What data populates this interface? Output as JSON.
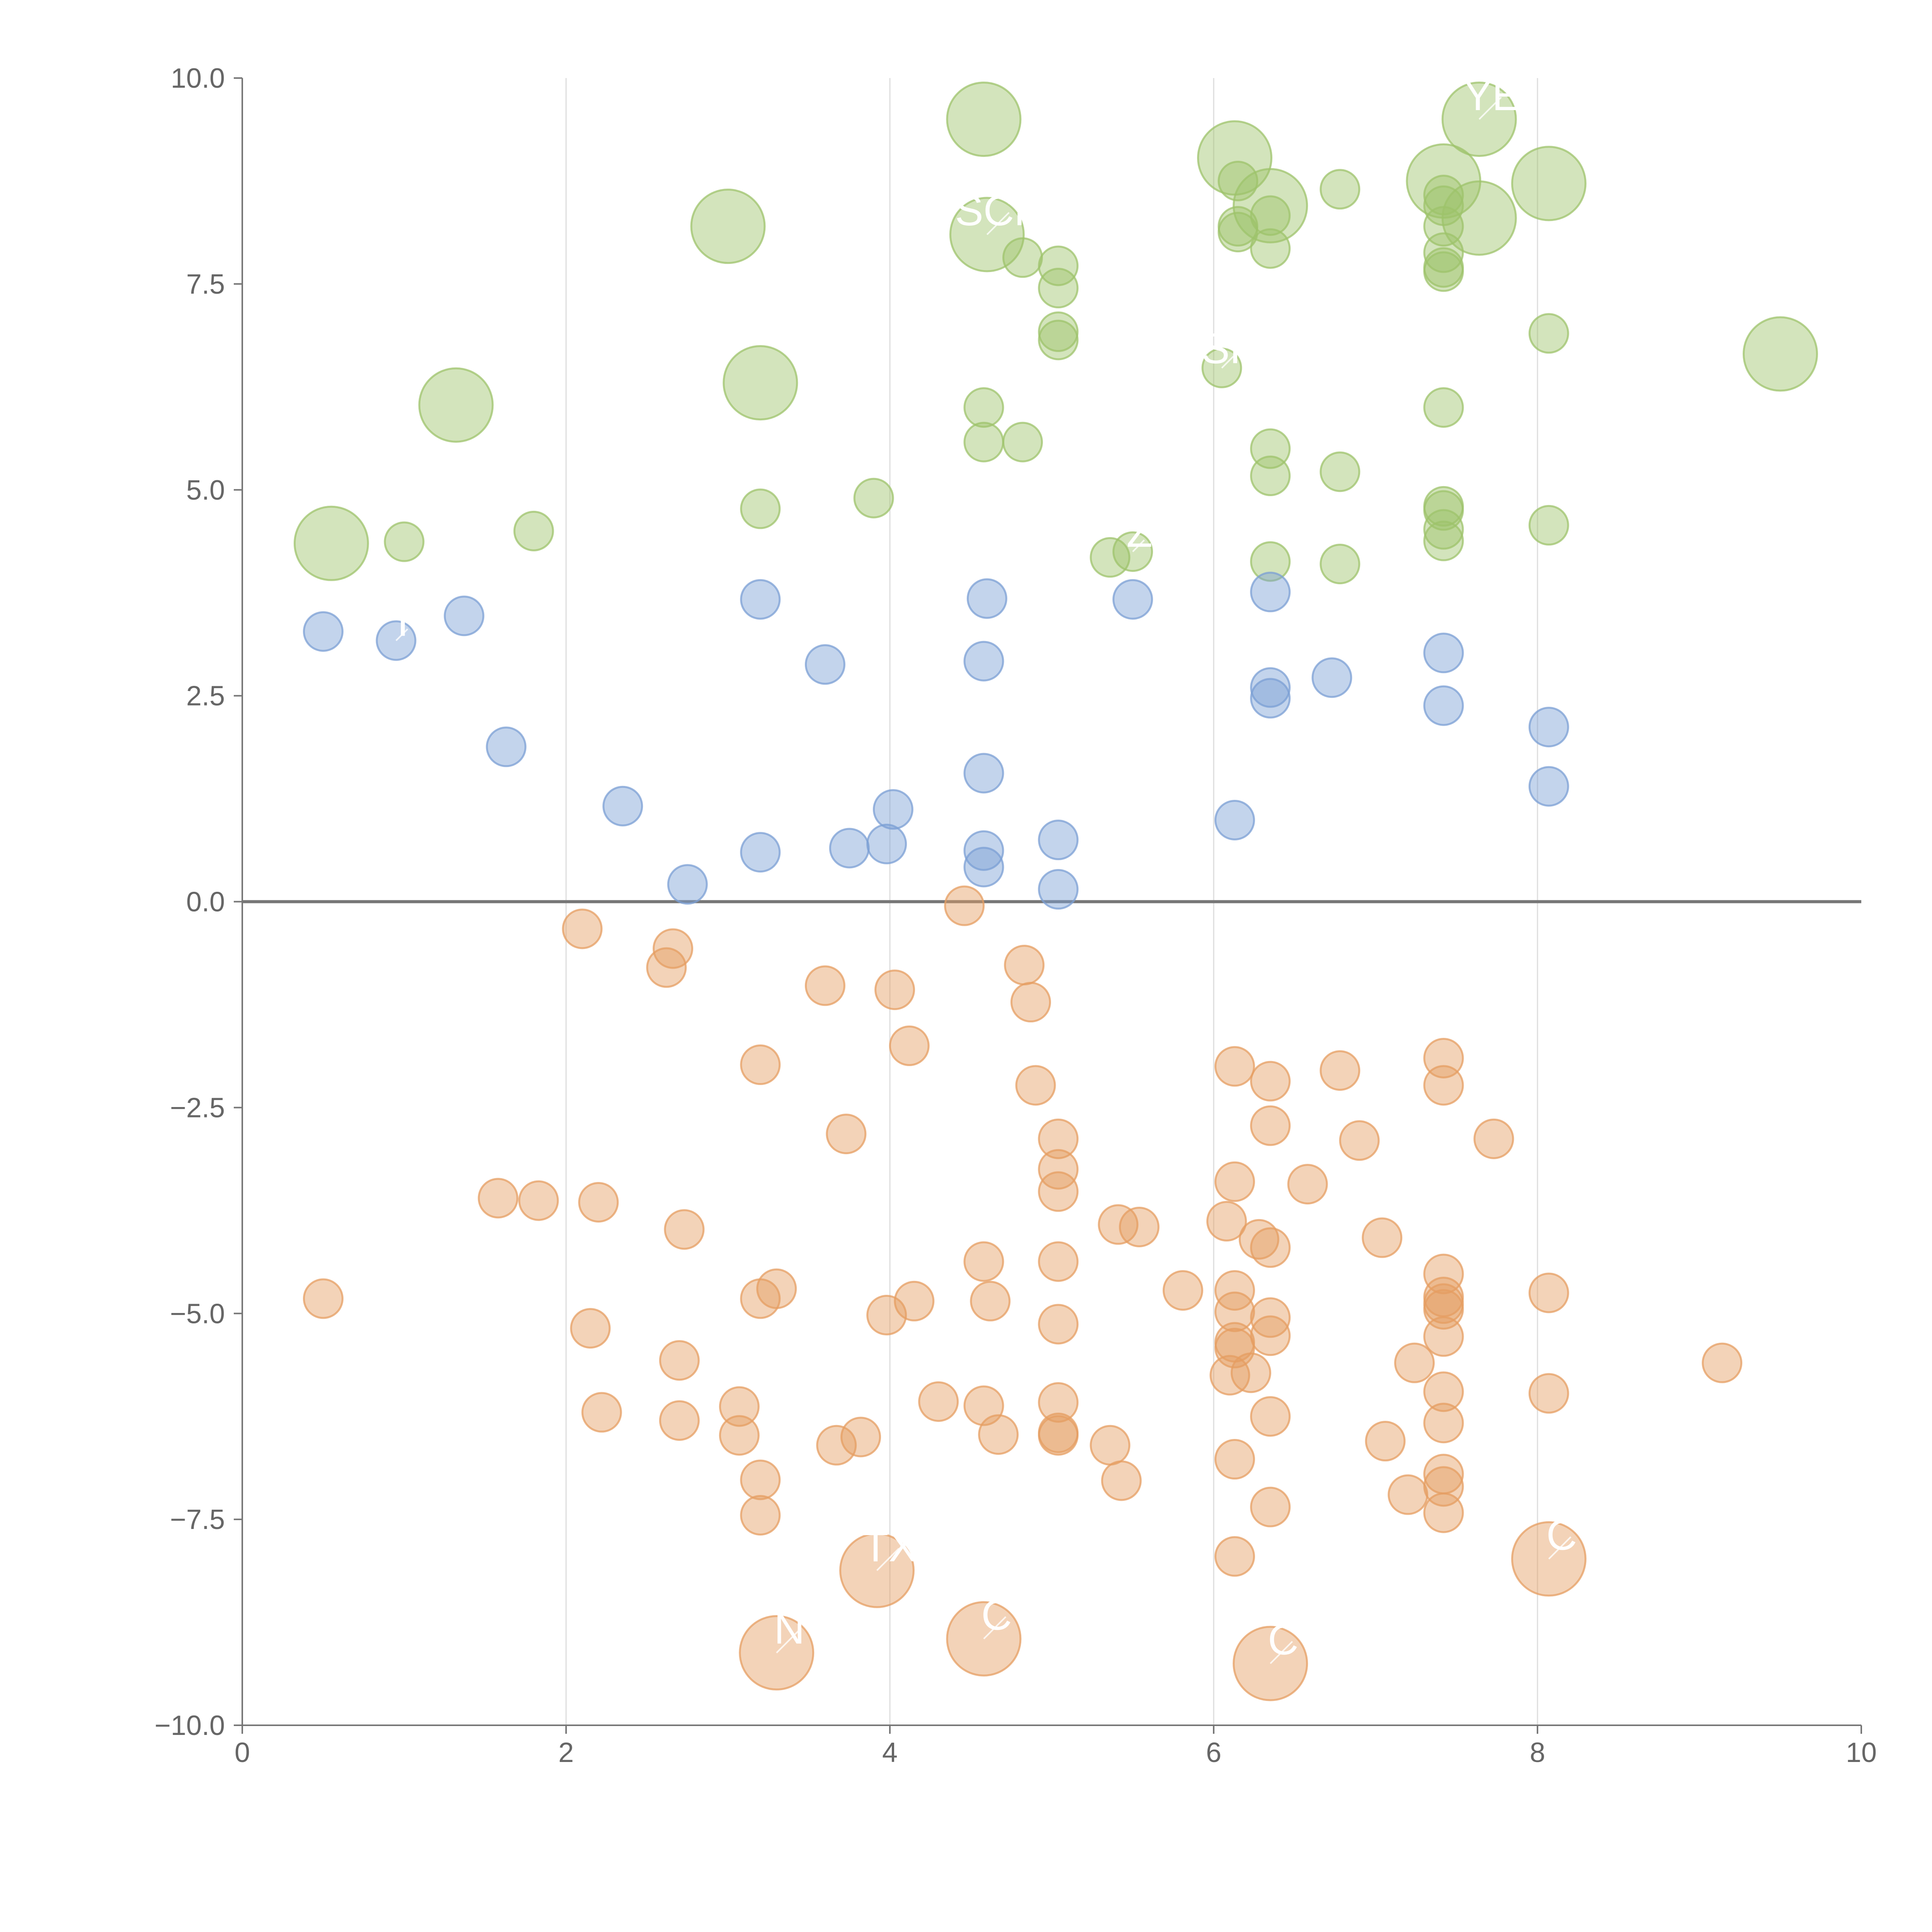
{
  "chart_data": {
    "type": "scatter",
    "title": "",
    "xlabel": "",
    "ylabel": "",
    "xlim": [
      0,
      10
    ],
    "ylim": [
      -10,
      10
    ],
    "grid": "vertical",
    "x_ticks": [
      "0",
      "2",
      "4",
      "6",
      "8",
      "10"
    ],
    "y_ticks": [
      "−10.0",
      "−7.5",
      "−5.0",
      "−2.5",
      "0.0",
      "2.5",
      "5.0",
      "7.5",
      "10.0"
    ],
    "colors": {
      "green": "#9dc36b",
      "blue": "#7b9fd4",
      "orange": "#e59d62",
      "axis": "#777777"
    },
    "series": [
      {
        "name": "green",
        "color": "#9dc36b",
        "points": [
          {
            "x": 0.55,
            "y": 4.35,
            "size": 2,
            "label": ""
          },
          {
            "x": 1.0,
            "y": 4.37,
            "size": 1
          },
          {
            "x": 1.8,
            "y": 4.5,
            "size": 1
          },
          {
            "x": 1.32,
            "y": 6.03,
            "size": 2
          },
          {
            "x": 3.0,
            "y": 8.2,
            "size": 2
          },
          {
            "x": 3.2,
            "y": 6.3,
            "size": 2
          },
          {
            "x": 3.2,
            "y": 4.77,
            "size": 1
          },
          {
            "x": 3.9,
            "y": 4.9,
            "size": 1
          },
          {
            "x": 4.58,
            "y": 9.5,
            "size": 2
          },
          {
            "x": 4.6,
            "y": 8.1,
            "size": 2,
            "label": "SCH"
          },
          {
            "x": 4.58,
            "y": 6.0,
            "size": 1
          },
          {
            "x": 4.58,
            "y": 5.58,
            "size": 1
          },
          {
            "x": 4.82,
            "y": 5.58,
            "size": 1
          },
          {
            "x": 4.82,
            "y": 7.82,
            "size": 1
          },
          {
            "x": 5.04,
            "y": 7.72,
            "size": 1
          },
          {
            "x": 5.04,
            "y": 7.45,
            "size": 1
          },
          {
            "x": 5.04,
            "y": 6.92,
            "size": 1
          },
          {
            "x": 5.04,
            "y": 6.82,
            "size": 1
          },
          {
            "x": 5.36,
            "y": 4.18,
            "size": 1
          },
          {
            "x": 5.5,
            "y": 4.25,
            "size": 1,
            "label": "Z"
          },
          {
            "x": 6.05,
            "y": 6.48,
            "size": 1,
            "label": "SF"
          },
          {
            "x": 6.13,
            "y": 9.03,
            "size": 2
          },
          {
            "x": 6.15,
            "y": 8.75,
            "size": 1
          },
          {
            "x": 6.15,
            "y": 8.2,
            "size": 1
          },
          {
            "x": 6.15,
            "y": 8.13,
            "size": 1
          },
          {
            "x": 6.35,
            "y": 8.45,
            "size": 2
          },
          {
            "x": 6.35,
            "y": 8.33,
            "size": 1
          },
          {
            "x": 6.35,
            "y": 7.93,
            "size": 1
          },
          {
            "x": 6.35,
            "y": 5.5,
            "size": 1
          },
          {
            "x": 6.35,
            "y": 5.17,
            "size": 1
          },
          {
            "x": 6.35,
            "y": 4.13,
            "size": 1
          },
          {
            "x": 6.78,
            "y": 8.65,
            "size": 1
          },
          {
            "x": 6.78,
            "y": 5.22,
            "size": 1
          },
          {
            "x": 6.78,
            "y": 4.1,
            "size": 1
          },
          {
            "x": 7.42,
            "y": 8.75,
            "size": 2
          },
          {
            "x": 7.42,
            "y": 8.58,
            "size": 1
          },
          {
            "x": 7.42,
            "y": 8.45,
            "size": 1
          },
          {
            "x": 7.42,
            "y": 8.2,
            "size": 1
          },
          {
            "x": 7.42,
            "y": 7.88,
            "size": 1
          },
          {
            "x": 7.42,
            "y": 7.7,
            "size": 1
          },
          {
            "x": 7.42,
            "y": 7.65,
            "size": 1
          },
          {
            "x": 7.42,
            "y": 6.0,
            "size": 1
          },
          {
            "x": 7.42,
            "y": 4.8,
            "size": 1
          },
          {
            "x": 7.42,
            "y": 4.75,
            "size": 1
          },
          {
            "x": 7.42,
            "y": 4.52,
            "size": 1
          },
          {
            "x": 7.42,
            "y": 4.38,
            "size": 1
          },
          {
            "x": 7.64,
            "y": 9.5,
            "size": 2,
            "label": "YE"
          },
          {
            "x": 7.64,
            "y": 8.3,
            "size": 2
          },
          {
            "x": 8.07,
            "y": 8.72,
            "size": 2
          },
          {
            "x": 8.07,
            "y": 6.9,
            "size": 1
          },
          {
            "x": 8.07,
            "y": 4.57,
            "size": 1
          },
          {
            "x": 9.5,
            "y": 6.65,
            "size": 2
          }
        ]
      },
      {
        "name": "blue",
        "color": "#7b9fd4",
        "points": [
          {
            "x": 0.5,
            "y": 3.28,
            "size": 1
          },
          {
            "x": 0.95,
            "y": 3.17,
            "size": 1,
            "label": "I"
          },
          {
            "x": 1.37,
            "y": 3.47,
            "size": 1
          },
          {
            "x": 1.63,
            "y": 1.88,
            "size": 1
          },
          {
            "x": 2.35,
            "y": 1.16,
            "size": 1
          },
          {
            "x": 2.75,
            "y": 0.21,
            "size": 1
          },
          {
            "x": 3.2,
            "y": 3.67,
            "size": 1
          },
          {
            "x": 3.2,
            "y": 0.6,
            "size": 1
          },
          {
            "x": 3.6,
            "y": 2.88,
            "size": 1
          },
          {
            "x": 3.75,
            "y": 0.65,
            "size": 1
          },
          {
            "x": 3.98,
            "y": 0.7,
            "size": 1
          },
          {
            "x": 4.02,
            "y": 1.12,
            "size": 1
          },
          {
            "x": 4.6,
            "y": 3.68,
            "size": 1
          },
          {
            "x": 4.58,
            "y": 2.92,
            "size": 1
          },
          {
            "x": 4.58,
            "y": 1.56,
            "size": 1
          },
          {
            "x": 4.58,
            "y": 0.62,
            "size": 1
          },
          {
            "x": 4.58,
            "y": 0.42,
            "size": 1
          },
          {
            "x": 5.04,
            "y": 0.75,
            "size": 1
          },
          {
            "x": 5.04,
            "y": 0.15,
            "size": 1
          },
          {
            "x": 5.5,
            "y": 3.67,
            "size": 1
          },
          {
            "x": 6.13,
            "y": 0.99,
            "size": 1
          },
          {
            "x": 6.35,
            "y": 3.76,
            "size": 1
          },
          {
            "x": 6.35,
            "y": 2.6,
            "size": 1
          },
          {
            "x": 6.35,
            "y": 2.47,
            "size": 1
          },
          {
            "x": 6.73,
            "y": 2.72,
            "size": 1
          },
          {
            "x": 7.42,
            "y": 3.02,
            "size": 1
          },
          {
            "x": 7.42,
            "y": 2.38,
            "size": 1
          },
          {
            "x": 8.07,
            "y": 2.12,
            "size": 1
          },
          {
            "x": 8.07,
            "y": 1.4,
            "size": 1
          }
        ]
      },
      {
        "name": "orange",
        "color": "#e59d62",
        "points": [
          {
            "x": 0.5,
            "y": -4.82,
            "size": 1
          },
          {
            "x": 1.58,
            "y": -3.6,
            "size": 1
          },
          {
            "x": 1.83,
            "y": -3.63,
            "size": 1
          },
          {
            "x": 2.1,
            "y": -0.33,
            "size": 1
          },
          {
            "x": 2.15,
            "y": -5.18,
            "size": 1
          },
          {
            "x": 2.2,
            "y": -3.65,
            "size": 1
          },
          {
            "x": 2.22,
            "y": -6.2,
            "size": 1
          },
          {
            "x": 2.62,
            "y": -0.8,
            "size": 1
          },
          {
            "x": 2.66,
            "y": -0.57,
            "size": 1
          },
          {
            "x": 2.7,
            "y": -5.57,
            "size": 1
          },
          {
            "x": 2.7,
            "y": -6.3,
            "size": 1
          },
          {
            "x": 2.73,
            "y": -3.98,
            "size": 1
          },
          {
            "x": 3.07,
            "y": -6.13,
            "size": 1
          },
          {
            "x": 3.07,
            "y": -6.48,
            "size": 1
          },
          {
            "x": 3.2,
            "y": -1.98,
            "size": 1
          },
          {
            "x": 3.2,
            "y": -4.82,
            "size": 1
          },
          {
            "x": 3.2,
            "y": -7.02,
            "size": 1
          },
          {
            "x": 3.2,
            "y": -7.45,
            "size": 1
          },
          {
            "x": 3.3,
            "y": -4.7,
            "size": 1
          },
          {
            "x": 3.3,
            "y": -9.12,
            "size": 2,
            "label": "N"
          },
          {
            "x": 3.6,
            "y": -1.02,
            "size": 1
          },
          {
            "x": 3.67,
            "y": -6.6,
            "size": 1
          },
          {
            "x": 3.73,
            "y": -2.82,
            "size": 1
          },
          {
            "x": 3.82,
            "y": -6.5,
            "size": 1
          },
          {
            "x": 3.92,
            "y": -8.12,
            "size": 2,
            "label": "TX"
          },
          {
            "x": 3.98,
            "y": -5.02,
            "size": 1
          },
          {
            "x": 4.03,
            "y": -1.07,
            "size": 1
          },
          {
            "x": 4.12,
            "y": -1.75,
            "size": 1
          },
          {
            "x": 4.15,
            "y": -4.85,
            "size": 1
          },
          {
            "x": 4.3,
            "y": -6.07,
            "size": 1
          },
          {
            "x": 4.46,
            "y": -0.05,
            "size": 1
          },
          {
            "x": 4.58,
            "y": -4.37,
            "size": 1
          },
          {
            "x": 4.58,
            "y": -6.12,
            "size": 1
          },
          {
            "x": 4.62,
            "y": -4.85,
            "size": 1
          },
          {
            "x": 4.58,
            "y": -8.95,
            "size": 2,
            "label": "C"
          },
          {
            "x": 4.67,
            "y": -6.47,
            "size": 1
          },
          {
            "x": 4.83,
            "y": -0.77,
            "size": 1
          },
          {
            "x": 4.87,
            "y": -1.22,
            "size": 1
          },
          {
            "x": 4.9,
            "y": -2.23,
            "size": 1
          },
          {
            "x": 5.04,
            "y": -2.88,
            "size": 1
          },
          {
            "x": 5.04,
            "y": -3.25,
            "size": 1
          },
          {
            "x": 5.04,
            "y": -3.52,
            "size": 1
          },
          {
            "x": 5.04,
            "y": -4.37,
            "size": 1
          },
          {
            "x": 5.04,
            "y": -5.13,
            "size": 1
          },
          {
            "x": 5.04,
            "y": -6.08,
            "size": 1
          },
          {
            "x": 5.04,
            "y": -6.45,
            "size": 1
          },
          {
            "x": 5.04,
            "y": -6.48,
            "size": 1
          },
          {
            "x": 5.36,
            "y": -6.6,
            "size": 1
          },
          {
            "x": 5.41,
            "y": -3.92,
            "size": 1
          },
          {
            "x": 5.43,
            "y": -7.03,
            "size": 1
          },
          {
            "x": 5.54,
            "y": -3.95,
            "size": 1
          },
          {
            "x": 5.81,
            "y": -4.72,
            "size": 1
          },
          {
            "x": 6.08,
            "y": -3.88,
            "size": 1
          },
          {
            "x": 6.1,
            "y": -5.75,
            "size": 1
          },
          {
            "x": 6.13,
            "y": -2.0,
            "size": 1
          },
          {
            "x": 6.13,
            "y": -3.4,
            "size": 1
          },
          {
            "x": 6.13,
            "y": -4.72,
            "size": 1
          },
          {
            "x": 6.13,
            "y": -4.98,
            "size": 1
          },
          {
            "x": 6.13,
            "y": -5.35,
            "size": 1
          },
          {
            "x": 6.13,
            "y": -5.42,
            "size": 1
          },
          {
            "x": 6.13,
            "y": -6.77,
            "size": 1
          },
          {
            "x": 6.13,
            "y": -7.95,
            "size": 1
          },
          {
            "x": 6.23,
            "y": -5.72,
            "size": 1
          },
          {
            "x": 6.28,
            "y": -4.1,
            "size": 1
          },
          {
            "x": 6.35,
            "y": -2.18,
            "size": 1
          },
          {
            "x": 6.35,
            "y": -2.72,
            "size": 1
          },
          {
            "x": 6.35,
            "y": -4.2,
            "size": 1
          },
          {
            "x": 6.35,
            "y": -5.05,
            "size": 1
          },
          {
            "x": 6.35,
            "y": -5.27,
            "size": 1
          },
          {
            "x": 6.35,
            "y": -6.25,
            "size": 1
          },
          {
            "x": 6.35,
            "y": -7.35,
            "size": 1
          },
          {
            "x": 6.35,
            "y": -9.25,
            "size": 2,
            "label": "C"
          },
          {
            "x": 6.58,
            "y": -3.43,
            "size": 1
          },
          {
            "x": 6.78,
            "y": -2.05,
            "size": 1
          },
          {
            "x": 6.9,
            "y": -2.9,
            "size": 1
          },
          {
            "x": 7.04,
            "y": -4.08,
            "size": 1
          },
          {
            "x": 7.06,
            "y": -6.55,
            "size": 1
          },
          {
            "x": 7.2,
            "y": -7.2,
            "size": 1
          },
          {
            "x": 7.24,
            "y": -5.6,
            "size": 1
          },
          {
            "x": 7.42,
            "y": -1.9,
            "size": 1
          },
          {
            "x": 7.42,
            "y": -2.23,
            "size": 1
          },
          {
            "x": 7.42,
            "y": -4.52,
            "size": 1
          },
          {
            "x": 7.42,
            "y": -4.8,
            "size": 1
          },
          {
            "x": 7.42,
            "y": -4.88,
            "size": 1
          },
          {
            "x": 7.42,
            "y": -4.95,
            "size": 1
          },
          {
            "x": 7.42,
            "y": -5.28,
            "size": 1
          },
          {
            "x": 7.42,
            "y": -5.95,
            "size": 1
          },
          {
            "x": 7.42,
            "y": -6.33,
            "size": 1
          },
          {
            "x": 7.42,
            "y": -6.95,
            "size": 1
          },
          {
            "x": 7.42,
            "y": -7.1,
            "size": 1
          },
          {
            "x": 7.42,
            "y": -7.42,
            "size": 1
          },
          {
            "x": 7.73,
            "y": -2.88,
            "size": 1
          },
          {
            "x": 8.07,
            "y": -4.75,
            "size": 1
          },
          {
            "x": 8.07,
            "y": -5.97,
            "size": 1
          },
          {
            "x": 8.07,
            "y": -7.98,
            "size": 2,
            "label": "C"
          },
          {
            "x": 9.14,
            "y": -5.6,
            "size": 1
          }
        ]
      }
    ]
  }
}
